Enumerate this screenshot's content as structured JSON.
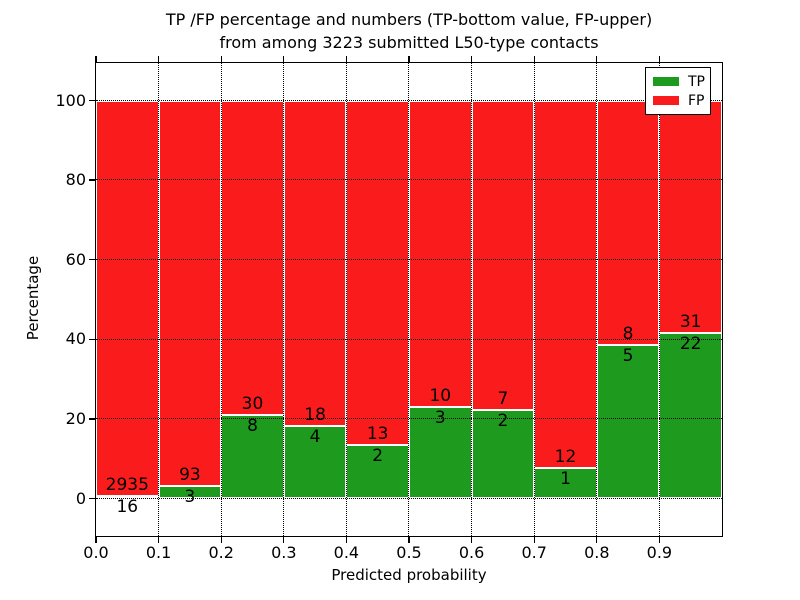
{
  "chart_data": {
    "type": "bar",
    "stacked": true,
    "title_line1": "TP /FP percentage and numbers (TP-bottom value, FP-upper)",
    "title_line2": "from among 3223 submitted L50-type contacts",
    "xlabel": "Predicted probability",
    "ylabel": "Percentage",
    "total_contacts": 3223,
    "x_tick_labels": [
      "0.0",
      "0.1",
      "0.2",
      "0.3",
      "0.4",
      "0.5",
      "0.6",
      "0.7",
      "0.8",
      "0.9"
    ],
    "y_tick_labels": [
      "0",
      "20",
      "40",
      "60",
      "80",
      "100"
    ],
    "y_tick_values": [
      0,
      20,
      40,
      60,
      80,
      100
    ],
    "xlim": [
      0.0,
      1.0
    ],
    "ylim": [
      -9.4,
      109.4
    ],
    "grid_style": "dotted",
    "bin_width": 0.1,
    "series": [
      {
        "name": "TP",
        "color": "#1E9B1E",
        "values_pct": [
          0.54,
          3.13,
          21.05,
          18.18,
          13.33,
          23.08,
          22.22,
          7.69,
          38.46,
          41.51
        ]
      },
      {
        "name": "FP",
        "color": "#FA1C1C",
        "values_pct": [
          99.46,
          96.87,
          78.95,
          81.82,
          86.67,
          76.92,
          77.78,
          92.31,
          61.54,
          58.49
        ]
      }
    ],
    "bins": [
      {
        "x_start": 0.0,
        "x_end": 0.1,
        "tp_count": 16,
        "fp_count": 2935,
        "tp_pct": 0.54
      },
      {
        "x_start": 0.1,
        "x_end": 0.2,
        "tp_count": 3,
        "fp_count": 93,
        "tp_pct": 3.13
      },
      {
        "x_start": 0.2,
        "x_end": 0.3,
        "tp_count": 8,
        "fp_count": 30,
        "tp_pct": 21.05
      },
      {
        "x_start": 0.3,
        "x_end": 0.4,
        "tp_count": 4,
        "fp_count": 18,
        "tp_pct": 18.18
      },
      {
        "x_start": 0.4,
        "x_end": 0.5,
        "tp_count": 2,
        "fp_count": 13,
        "tp_pct": 13.33
      },
      {
        "x_start": 0.5,
        "x_end": 0.6,
        "tp_count": 3,
        "fp_count": 10,
        "tp_pct": 23.08
      },
      {
        "x_start": 0.6,
        "x_end": 0.7,
        "tp_count": 2,
        "fp_count": 7,
        "tp_pct": 22.22
      },
      {
        "x_start": 0.7,
        "x_end": 0.8,
        "tp_count": 1,
        "fp_count": 12,
        "tp_pct": 7.69
      },
      {
        "x_start": 0.8,
        "x_end": 0.9,
        "tp_count": 5,
        "fp_count": 8,
        "tp_pct": 38.46
      },
      {
        "x_start": 0.9,
        "x_end": 1.0,
        "tp_count": 22,
        "fp_count": 31,
        "tp_pct": 41.51
      }
    ],
    "legend": {
      "position": "upper-right",
      "entries": [
        {
          "label": "TP",
          "color": "#1E9B1E"
        },
        {
          "label": "FP",
          "color": "#FA1C1C"
        }
      ]
    },
    "colors": {
      "tp": "#1E9B1E",
      "fp": "#FA1C1C",
      "bar_edge": "#FFFFFF",
      "grid": "#000000",
      "background": "#FFFFFF",
      "text": "#000000"
    }
  }
}
